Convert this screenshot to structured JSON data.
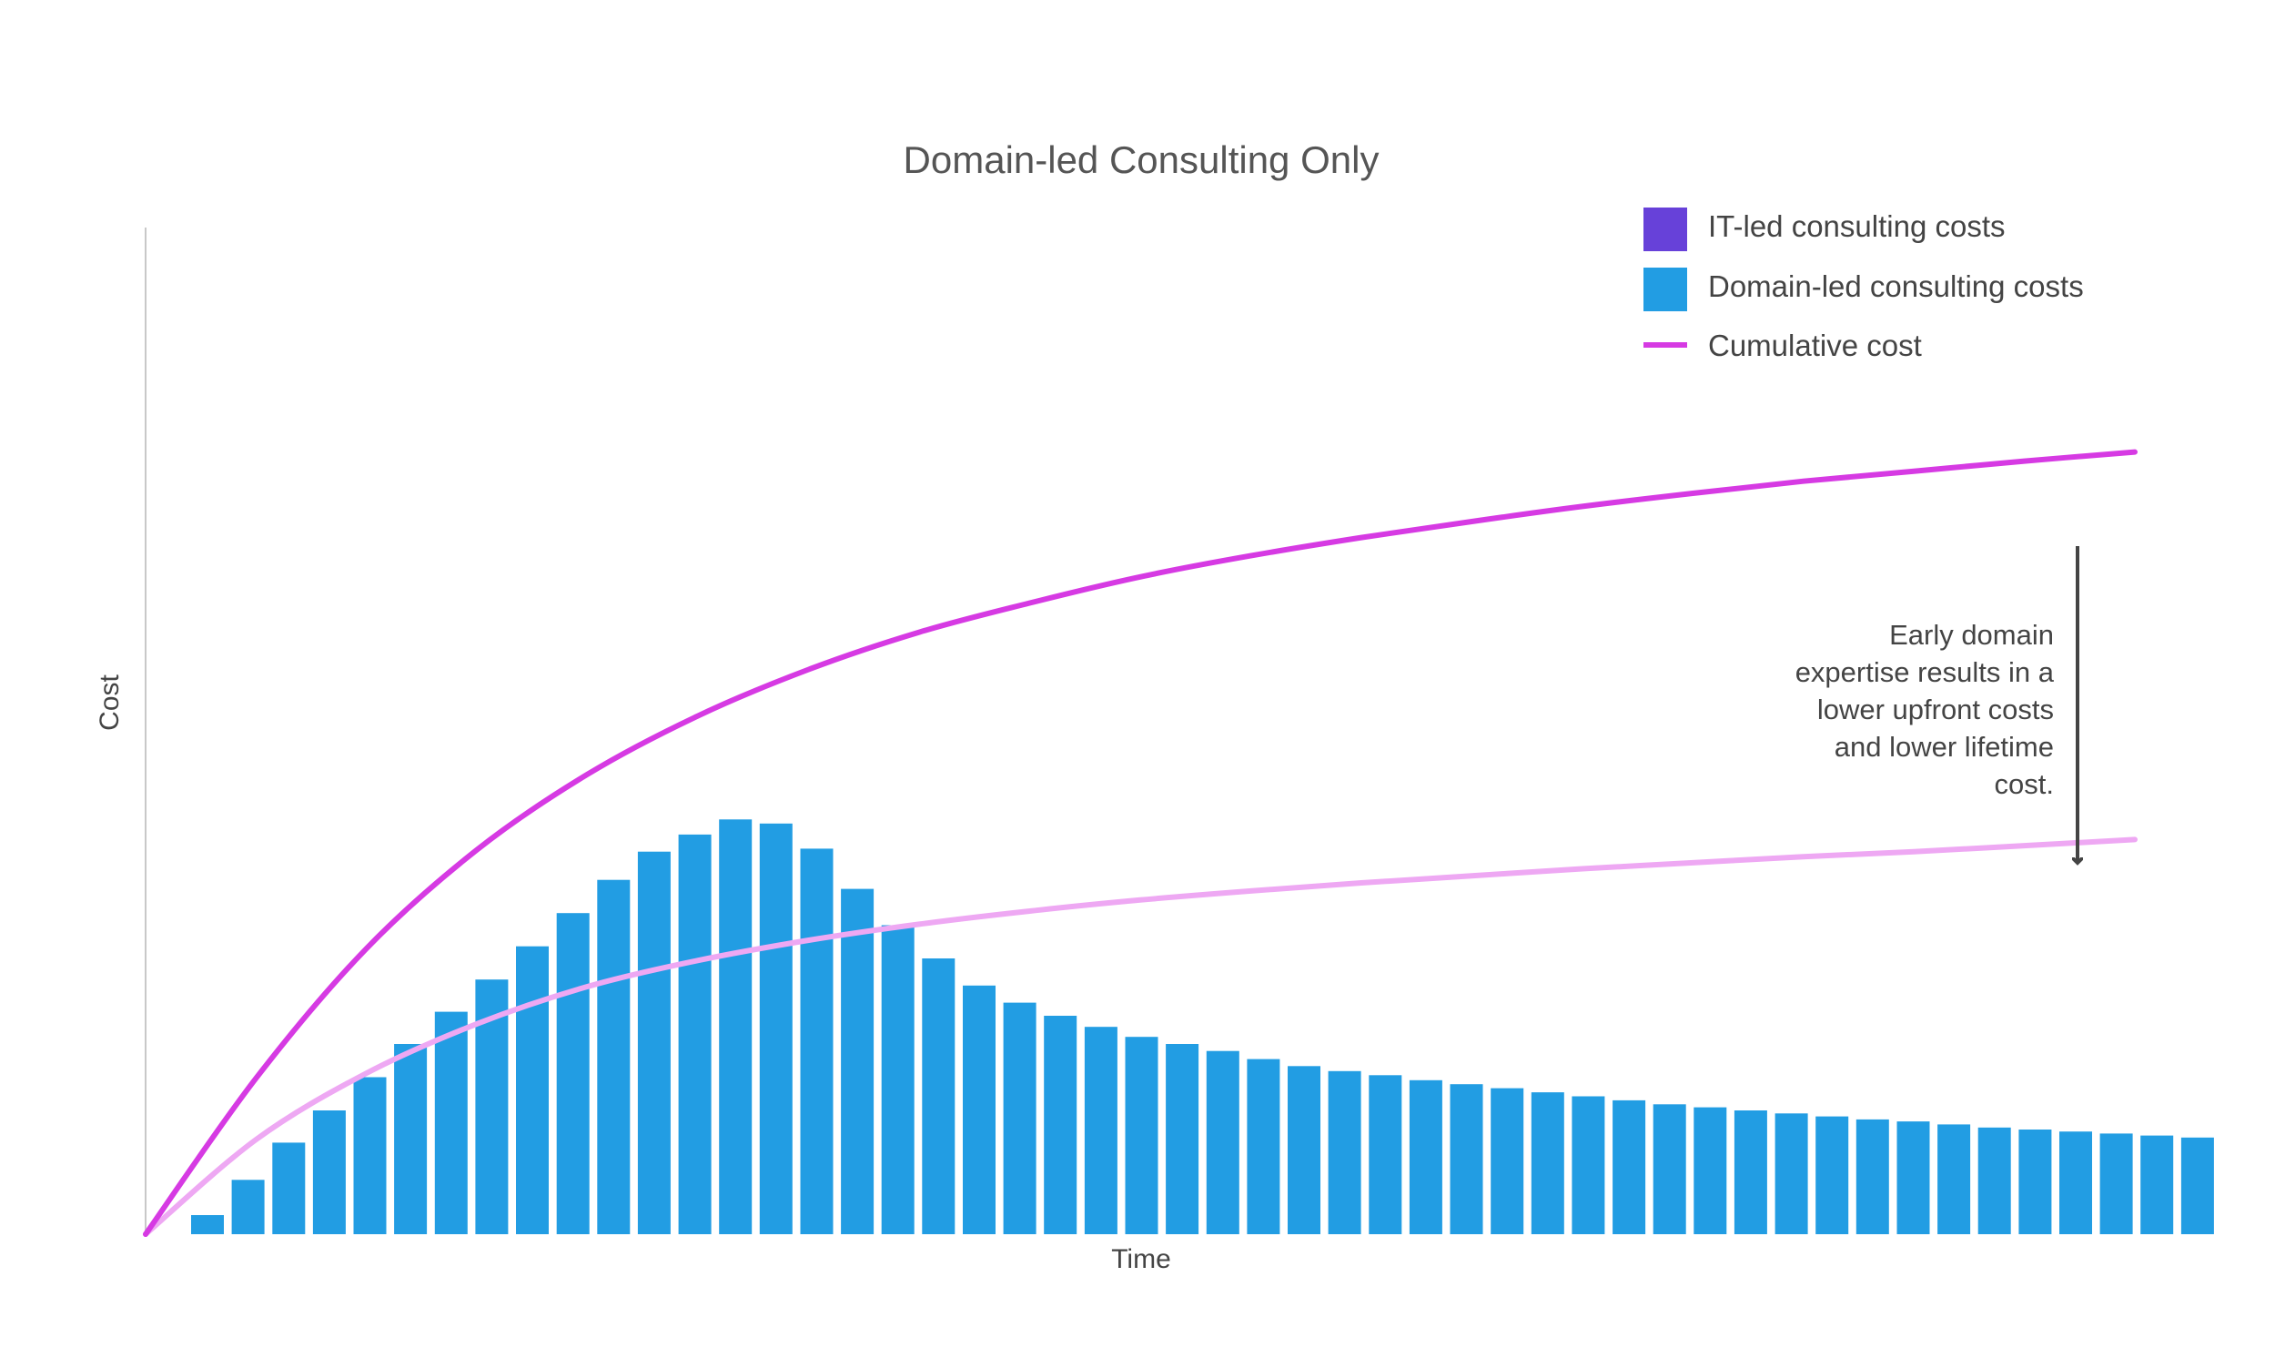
{
  "chart_data": {
    "type": "bar",
    "title": "Domain-led Consulting Only",
    "xlabel": "Time",
    "ylabel": "Cost",
    "ylim": [
      0,
      100
    ],
    "grid": false,
    "legend_position": "top-right",
    "legend": [
      {
        "label": "IT-led consulting costs",
        "kind": "swatch",
        "color": "#6741d9"
      },
      {
        "label": "Domain-led consulting costs",
        "kind": "swatch",
        "color": "#229de3"
      },
      {
        "label": "Cumulative cost",
        "kind": "line",
        "color": "#d63ae3"
      }
    ],
    "series": [
      {
        "name": "Domain-led consulting costs",
        "type": "bar",
        "color": "#229de3",
        "values": [
          1.9,
          5.4,
          9.1,
          12.3,
          15.6,
          18.9,
          22.1,
          25.3,
          28.6,
          31.9,
          35.2,
          38.0,
          39.7,
          41.2,
          40.8,
          38.3,
          34.3,
          30.7,
          27.4,
          24.7,
          23.0,
          21.7,
          20.6,
          19.6,
          18.9,
          18.2,
          17.4,
          16.7,
          16.2,
          15.8,
          15.3,
          14.9,
          14.5,
          14.1,
          13.7,
          13.3,
          12.9,
          12.6,
          12.3,
          12.0,
          11.7,
          11.4,
          11.2,
          10.9,
          10.6,
          10.4,
          10.2,
          10.0,
          9.8,
          9.6
        ]
      },
      {
        "name": "Cumulative cost",
        "type": "line",
        "color": "#d63ae3",
        "values": [
          0,
          15.5,
          28.4,
          38.2,
          45.7,
          51.5,
          56.1,
          59.8,
          62.7,
          65.3,
          67.4,
          69.2,
          70.8,
          72.3,
          73.6,
          74.8,
          75.8,
          76.8,
          77.7
        ]
      },
      {
        "name": "Lower cumulative cost",
        "type": "line",
        "color": "#eea8f3",
        "values": [
          0,
          9.4,
          16.0,
          20.9,
          24.6,
          27.2,
          29.2,
          30.8,
          32.1,
          33.2,
          34.1,
          34.9,
          35.6,
          36.3,
          36.9,
          37.5,
          38.0,
          38.6,
          39.2
        ]
      }
    ],
    "annotation": {
      "lines": [
        "Early domain",
        "expertise results in a",
        "lower upfront costs",
        "and lower lifetime",
        "cost."
      ]
    }
  }
}
